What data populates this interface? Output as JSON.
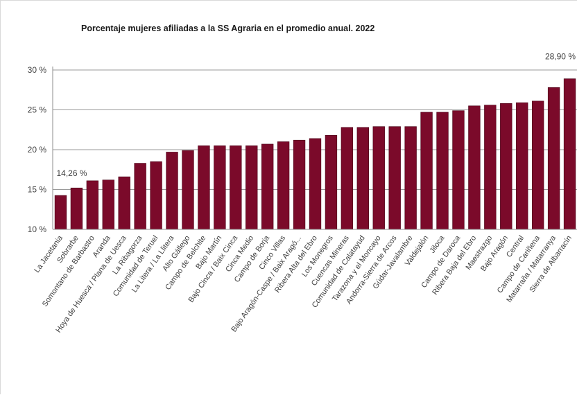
{
  "chart_data": {
    "type": "bar",
    "title": "Porcentaje mujeres afiliadas a la SS Agraria en el promedio anual.  2022",
    "xlabel": "",
    "ylabel": "",
    "ylim": [
      10,
      30
    ],
    "yticks": [
      "10 %",
      "15 %",
      "20 %",
      "25 %",
      "30 %"
    ],
    "ytick_values": [
      10,
      15,
      20,
      25,
      30
    ],
    "grid": true,
    "bar_color": "#7b0a2a",
    "categories": [
      "La Jacetania",
      "Sobrarbe",
      "Somontano de Barbastro",
      "Aranda",
      "Hoya de Huesca / Plana de Uesca",
      "La Ribagorza",
      "Comunidad de Teruel",
      "La Litera / La Llitera",
      "Alto Gállego",
      "Campo de Belchite",
      "Bajo Martín",
      "Bajo Cinca / Baix Cinca",
      "Cinca Medio",
      "Campo de Borja",
      "Cinco Villas",
      "Bajo Aragón-Caspe / Baix Aragó...",
      "Ribera Alta del Ebro",
      "Los Monegros",
      "Cuencas Mineras",
      "Comunidad de Calatayud",
      "Tarazona y el Moncayo",
      "Andorra-Sierra de Arcos",
      "Gúdar-Javalambre",
      "Valdejalón",
      "Jiloca",
      "Campo de Daroca",
      "Ribera Baja del Ebro",
      "Maestrazgo",
      "Bajo Aragón",
      "Central",
      "Campo de Cariñena",
      "Matarraña / Matarranya",
      "Sierra de Albarracín"
    ],
    "values": [
      14.26,
      15.2,
      16.1,
      16.2,
      16.6,
      18.3,
      18.5,
      19.7,
      19.9,
      20.5,
      20.5,
      20.5,
      20.5,
      20.7,
      21.0,
      21.2,
      21.4,
      21.8,
      22.8,
      22.8,
      22.9,
      22.9,
      22.9,
      24.7,
      24.7,
      24.9,
      25.5,
      25.6,
      25.8,
      25.9,
      26.1,
      27.8,
      28.9
    ],
    "data_labels": [
      {
        "index": 0,
        "text": "14,26 %"
      },
      {
        "index": 32,
        "text": "28,90 %"
      }
    ]
  }
}
